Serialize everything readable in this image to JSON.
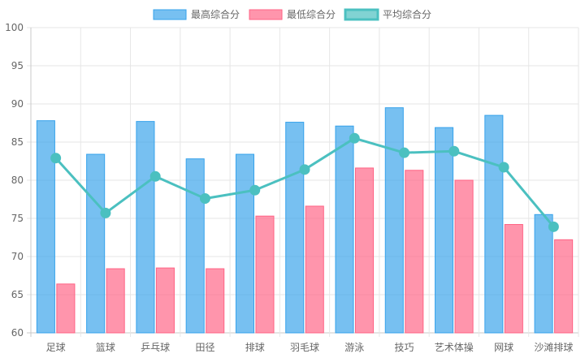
{
  "chart_data": {
    "type": "bar",
    "categories": [
      "足球",
      "篮球",
      "乒乓球",
      "田径",
      "排球",
      "羽毛球",
      "游泳",
      "技巧",
      "艺术体操",
      "网球",
      "沙滩排球"
    ],
    "series": [
      {
        "name": "最高综合分",
        "type": "bar",
        "color": "#36a2eb",
        "values": [
          87.8,
          83.4,
          87.7,
          82.8,
          83.4,
          87.6,
          87.1,
          89.5,
          86.9,
          88.5,
          75.5
        ]
      },
      {
        "name": "最低综合分",
        "type": "bar",
        "color": "#ff6384",
        "values": [
          66.4,
          68.4,
          68.5,
          68.4,
          75.3,
          76.6,
          81.6,
          81.3,
          80.0,
          74.2,
          72.2
        ]
      },
      {
        "name": "平均综合分",
        "type": "line",
        "color": "#4bc0c0",
        "values": [
          82.9,
          75.7,
          80.5,
          77.6,
          78.7,
          81.4,
          85.5,
          83.6,
          83.8,
          81.7,
          73.9
        ]
      }
    ],
    "ylim": [
      60,
      100
    ],
    "yticks": [
      60,
      65,
      70,
      75,
      80,
      85,
      90,
      95,
      100
    ],
    "grid": true,
    "legend": "top-center"
  }
}
